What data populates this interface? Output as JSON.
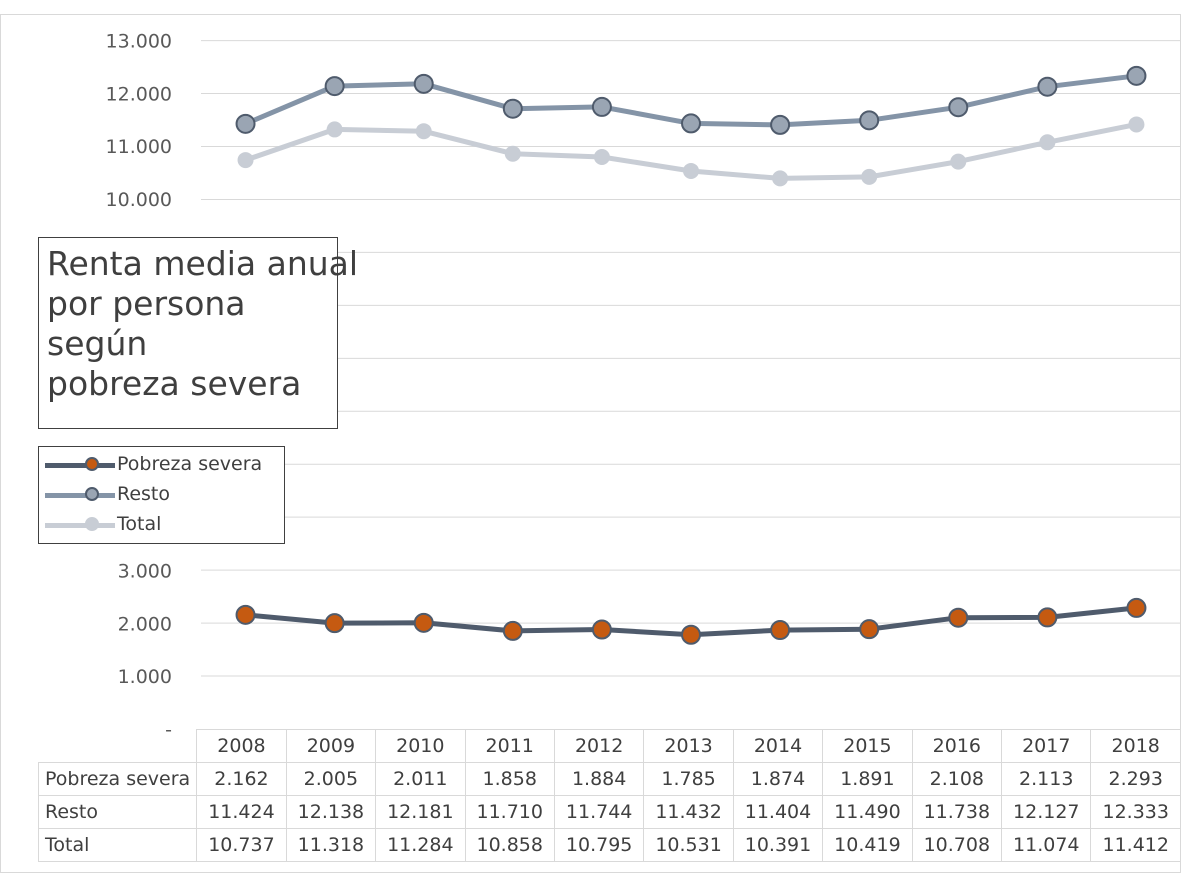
{
  "chart_data": {
    "type": "line",
    "title_lines": [
      "Renta media anual",
      "por persona",
      "según",
      "pobreza severa"
    ],
    "categories": [
      "2008",
      "2009",
      "2010",
      "2011",
      "2012",
      "2013",
      "2014",
      "2015",
      "2016",
      "2017",
      "2018"
    ],
    "y_ticks": [
      "-",
      "1.000",
      "2.000",
      "3.000",
      "10.000",
      "11.000",
      "12.000",
      "13.000"
    ],
    "y_tick_values": [
      0,
      1000,
      2000,
      3000,
      10000,
      11000,
      12000,
      13000
    ],
    "y_axis_break": [
      3000,
      10000
    ],
    "ylim": [
      0,
      13000
    ],
    "grid": true,
    "legend_position": "left",
    "series": [
      {
        "name": "Pobreza severa",
        "color": "#4f5b6c",
        "marker_fill": "#c55a11",
        "marker_stroke": "#4f5b6c",
        "values": [
          2162,
          2005,
          2011,
          1858,
          1884,
          1785,
          1874,
          1891,
          2108,
          2113,
          2293
        ],
        "labels": [
          "2.162",
          "2.005",
          "2.011",
          "1.858",
          "1.884",
          "1.785",
          "1.874",
          "1.891",
          "2.108",
          "2.113",
          "2.293"
        ]
      },
      {
        "name": "Resto",
        "color": "#8494a7",
        "marker_fill": "#9aa5b3",
        "marker_stroke": "#4f5b6c",
        "values": [
          11424,
          12138,
          12181,
          11710,
          11744,
          11432,
          11404,
          11490,
          11738,
          12127,
          12333
        ],
        "labels": [
          "11.424",
          "12.138",
          "12.181",
          "11.710",
          "11.744",
          "11.432",
          "11.404",
          "11.490",
          "11.738",
          "12.127",
          "12.333"
        ]
      },
      {
        "name": "Total",
        "color": "#c8cdd5",
        "marker_fill": "#c8cdd5",
        "marker_stroke": "#c8cdd5",
        "values": [
          10737,
          11318,
          11284,
          10858,
          10795,
          10531,
          10391,
          10419,
          10708,
          11074,
          11412
        ],
        "labels": [
          "10.737",
          "11.318",
          "11.284",
          "10.858",
          "10.795",
          "10.531",
          "10.391",
          "10.419",
          "10.708",
          "11.074",
          "11.412"
        ]
      }
    ]
  }
}
